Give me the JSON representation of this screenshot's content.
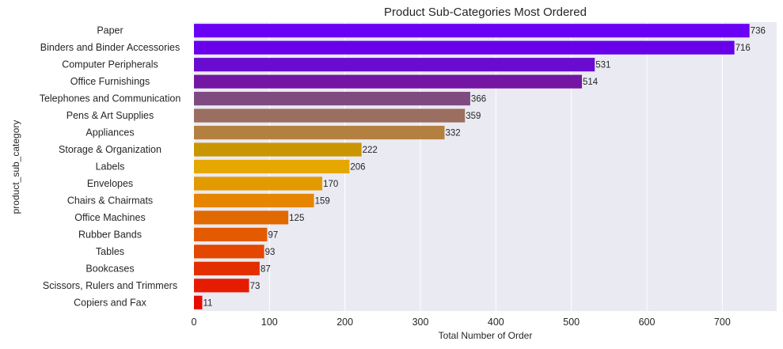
{
  "chart_data": {
    "type": "bar",
    "orientation": "horizontal",
    "title": "Product Sub-Categories Most Ordered",
    "xlabel": "Total Number of Order",
    "ylabel": "product_sub_category",
    "xlim": [
      0,
      772
    ],
    "xticks": [
      0,
      100,
      200,
      300,
      400,
      500,
      600,
      700
    ],
    "grid": true,
    "categories": [
      "Paper",
      "Binders and Binder Accessories",
      "Computer Peripherals",
      "Office Furnishings",
      "Telephones and Communication",
      "Pens & Art Supplies",
      "Appliances",
      "Storage & Organization",
      "Labels",
      "Envelopes",
      "Chairs & Chairmats",
      "Office Machines",
      "Rubber Bands",
      "Tables",
      "Bookcases",
      "Scissors, Rulers and Trimmers",
      "Copiers and Fax"
    ],
    "values": [
      736,
      716,
      531,
      514,
      366,
      359,
      332,
      222,
      206,
      170,
      159,
      125,
      97,
      93,
      87,
      73,
      11
    ],
    "colors": [
      "#6a00f4",
      "#6a00ea",
      "#6a0bd0",
      "#7515a3",
      "#7e4a80",
      "#9a6e60",
      "#b48040",
      "#c99500",
      "#e6a700",
      "#e39a00",
      "#e68600",
      "#e06a00",
      "#e35a00",
      "#e34700",
      "#e32e00",
      "#e61c00",
      "#e60b00"
    ],
    "plot_background": "#eaeaf2",
    "grid_color": "#ffffff"
  }
}
